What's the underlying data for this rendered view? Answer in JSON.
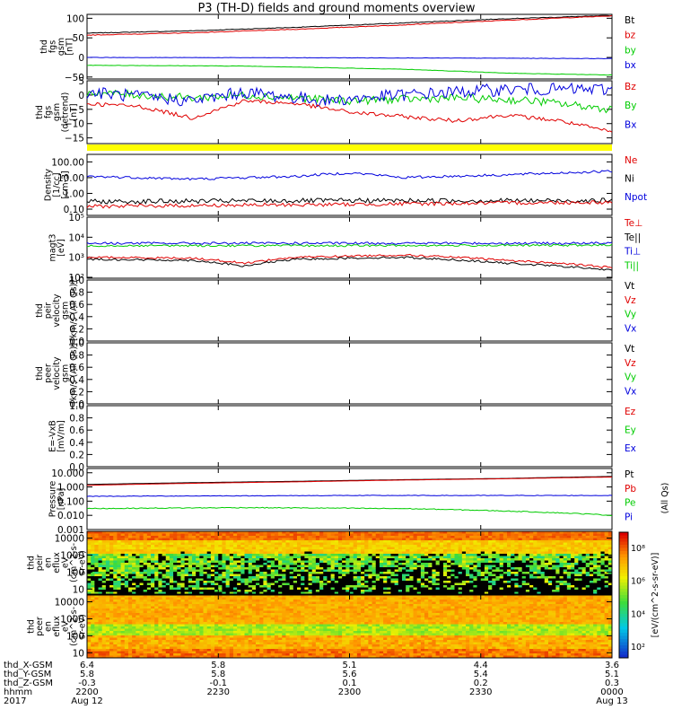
{
  "title": "P3 (TH-D) fields and ground moments overview",
  "colors": {
    "black": "#000000",
    "red": "#e00000",
    "green": "#00cc00",
    "blue": "#0000dd",
    "yellow": "#ffff00"
  },
  "chart_data": {
    "type": "line",
    "time_axis": {
      "ticks": [
        {
          "hhmm": "2200",
          "date": "Aug 12",
          "x_gsm": "6.4",
          "y_gsm": "5.8",
          "z_gsm": "-0.3"
        },
        {
          "hhmm": "2230",
          "date": "",
          "x_gsm": "5.8",
          "y_gsm": "5.8",
          "z_gsm": "-0.1"
        },
        {
          "hhmm": "2300",
          "date": "",
          "x_gsm": "5.1",
          "y_gsm": "5.6",
          "z_gsm": "0.1"
        },
        {
          "hhmm": "2330",
          "date": "",
          "x_gsm": "4.4",
          "y_gsm": "5.4",
          "z_gsm": "0.2"
        },
        {
          "hhmm": "0000",
          "date": "Aug 13",
          "x_gsm": "3.6",
          "y_gsm": "5.1",
          "z_gsm": "0.3"
        }
      ],
      "row_labels": [
        "thd_X-GSM",
        "thd_Y-GSM",
        "thd_Z-GSM",
        "hhmm",
        "2017"
      ]
    },
    "panels": [
      {
        "id": "fgs-gsm",
        "ylabel": [
          "thd",
          "fgs",
          "gsm",
          "[nT]"
        ],
        "yscale": "linear",
        "ylim": [
          -55,
          110
        ],
        "ticks": [
          {
            "v": 100,
            "t": "100"
          },
          {
            "v": 50,
            "t": "50"
          },
          {
            "v": 0,
            "t": "0"
          },
          {
            "v": -50,
            "t": "−50"
          }
        ],
        "legend": [
          {
            "text": "Bt",
            "color": "black"
          },
          {
            "text": "bz",
            "color": "red"
          },
          {
            "text": "by",
            "color": "green"
          },
          {
            "text": "bx",
            "color": "blue"
          }
        ],
        "series": [
          {
            "name": "Bt",
            "color": "black",
            "noise": 0.8,
            "pts": [
              [
                0,
                62
              ],
              [
                0.2,
                68
              ],
              [
                0.4,
                77
              ],
              [
                0.6,
                88
              ],
              [
                0.8,
                99
              ],
              [
                1,
                107
              ]
            ]
          },
          {
            "name": "bz",
            "color": "red",
            "noise": 0.8,
            "pts": [
              [
                0,
                57
              ],
              [
                0.2,
                63
              ],
              [
                0.4,
                72
              ],
              [
                0.6,
                83
              ],
              [
                0.8,
                95
              ],
              [
                1,
                106
              ]
            ]
          },
          {
            "name": "by",
            "color": "green",
            "noise": 0.5,
            "pts": [
              [
                0,
                -20
              ],
              [
                0.3,
                -22
              ],
              [
                0.6,
                -30
              ],
              [
                0.8,
                -40
              ],
              [
                1,
                -45
              ]
            ]
          },
          {
            "name": "bx",
            "color": "blue",
            "noise": 0.5,
            "pts": [
              [
                0,
                0
              ],
              [
                0.5,
                -1
              ],
              [
                0.8,
                -2
              ],
              [
                1,
                -3
              ]
            ]
          }
        ]
      },
      {
        "id": "fgs-gsm-dt",
        "ylabel": [
          "thd",
          "fgs",
          "gsm",
          "(detrend)",
          "[nT]"
        ],
        "yscale": "linear",
        "ylim": [
          -17,
          5
        ],
        "ticks": [
          {
            "v": 5,
            "t": "5"
          },
          {
            "v": 0,
            "t": "0"
          },
          {
            "v": -5,
            "t": "−5"
          },
          {
            "v": -10,
            "t": "−10"
          },
          {
            "v": -15,
            "t": "−15"
          }
        ],
        "legend": [
          {
            "text": "Bz",
            "color": "red"
          },
          {
            "text": "By",
            "color": "green"
          },
          {
            "text": "Bx",
            "color": "blue"
          }
        ],
        "series": [
          {
            "name": "By",
            "color": "green",
            "noise": 1.4,
            "pts": [
              [
                0,
                1
              ],
              [
                0.2,
                -1
              ],
              [
                0.3,
                0
              ],
              [
                0.5,
                -2
              ],
              [
                0.7,
                -1
              ],
              [
                0.85,
                -2
              ],
              [
                1,
                -5
              ]
            ]
          },
          {
            "name": "Bx",
            "color": "blue",
            "noise": 2.2,
            "pts": [
              [
                0,
                1
              ],
              [
                0.2,
                -2
              ],
              [
                0.3,
                1
              ],
              [
                0.45,
                -2
              ],
              [
                0.6,
                0
              ],
              [
                0.8,
                2
              ],
              [
                1,
                2
              ]
            ]
          },
          {
            "name": "Bz",
            "color": "red",
            "noise": 0.7,
            "pts": [
              [
                0,
                -3
              ],
              [
                0.1,
                -4
              ],
              [
                0.2,
                -8
              ],
              [
                0.3,
                -2
              ],
              [
                0.4,
                -3
              ],
              [
                0.5,
                -6
              ],
              [
                0.7,
                -9
              ],
              [
                0.8,
                -7
              ],
              [
                0.9,
                -9
              ],
              [
                1,
                -13
              ]
            ]
          }
        ]
      },
      {
        "id": "density",
        "ylabel": [
          "Density",
          "[1/cc]",
          "[cm-3]"
        ],
        "yscale": "log",
        "ylim": [
          0.04,
          300
        ],
        "ticks": [
          {
            "v": 100,
            "t": "100.00"
          },
          {
            "v": 10,
            "t": "10.00"
          },
          {
            "v": 1,
            "t": "1.00"
          },
          {
            "v": 0.1,
            "t": "0.10"
          }
        ],
        "legend": [
          {
            "text": "Ne",
            "color": "red"
          },
          {
            "text": "Ni",
            "color": "black"
          },
          {
            "text": "Npot",
            "color": "blue"
          }
        ],
        "series": [
          {
            "name": "Npot",
            "color": "blue",
            "noise": 0.08,
            "pts": [
              [
                0,
                12
              ],
              [
                0.2,
                8
              ],
              [
                0.4,
                12
              ],
              [
                0.5,
                20
              ],
              [
                0.6,
                10
              ],
              [
                0.8,
                15
              ],
              [
                1,
                25
              ]
            ]
          },
          {
            "name": "Ni",
            "color": "black",
            "noise": 0.15,
            "pts": [
              [
                0,
                0.3
              ],
              [
                0.5,
                0.35
              ],
              [
                1,
                0.35
              ]
            ]
          },
          {
            "name": "Ne",
            "color": "red",
            "noise": 0.12,
            "pts": [
              [
                0,
                0.15
              ],
              [
                0.5,
                0.2
              ],
              [
                1,
                0.28
              ]
            ]
          }
        ]
      },
      {
        "id": "temperature",
        "ylabel": [
          "magt3",
          "[eV]"
        ],
        "yscale": "log",
        "ylim": [
          90,
          100000
        ],
        "ticks": [
          {
            "v": 100000,
            "t": "10⁵"
          },
          {
            "v": 10000,
            "t": "10⁴"
          },
          {
            "v": 1000,
            "t": "10³"
          },
          {
            "v": 100,
            "t": "10²"
          }
        ],
        "legend": [
          {
            "text": "Te⊥",
            "color": "red"
          },
          {
            "text": "Te||",
            "color": "black"
          },
          {
            "text": "Ti⊥",
            "color": "blue"
          },
          {
            "text": "Ti||",
            "color": "green"
          }
        ],
        "series": [
          {
            "name": "Ti⊥",
            "color": "blue",
            "noise": 0.06,
            "pts": [
              [
                0,
                5000
              ],
              [
                0.5,
                5000
              ],
              [
                1,
                5000
              ]
            ]
          },
          {
            "name": "Ti||",
            "color": "green",
            "noise": 0.05,
            "pts": [
              [
                0,
                3800
              ],
              [
                0.5,
                3800
              ],
              [
                1,
                4000
              ]
            ]
          },
          {
            "name": "Te⊥",
            "color": "red",
            "noise": 0.05,
            "pts": [
              [
                0,
                1000
              ],
              [
                0.2,
                900
              ],
              [
                0.3,
                500
              ],
              [
                0.4,
                1000
              ],
              [
                0.6,
                1300
              ],
              [
                0.8,
                700
              ],
              [
                1,
                300
              ]
            ]
          },
          {
            "name": "Te||",
            "color": "black",
            "noise": 0.05,
            "pts": [
              [
                0,
                800
              ],
              [
                0.2,
                700
              ],
              [
                0.3,
                350
              ],
              [
                0.4,
                800
              ],
              [
                0.6,
                1000
              ],
              [
                0.8,
                500
              ],
              [
                1,
                220
              ]
            ]
          }
        ]
      },
      {
        "id": "peir-velocity",
        "ylabel": [
          "thd",
          "peir",
          "velocity",
          "gsm",
          "[km/s (All Qs)]"
        ],
        "yscale": "linear",
        "ylim": [
          0,
          1
        ],
        "ticks": [
          {
            "v": 1,
            "t": "1.0"
          },
          {
            "v": 0.8,
            "t": "0.8"
          },
          {
            "v": 0.6,
            "t": "0.6"
          },
          {
            "v": 0.4,
            "t": "0.4"
          },
          {
            "v": 0.2,
            "t": "0.2"
          },
          {
            "v": 0,
            "t": "0.0"
          }
        ],
        "legend": [
          {
            "text": "Vt",
            "color": "black"
          },
          {
            "text": "Vz",
            "color": "red"
          },
          {
            "text": "Vy",
            "color": "green"
          },
          {
            "text": "Vx",
            "color": "blue"
          }
        ],
        "series": []
      },
      {
        "id": "peer-velocity",
        "ylabel": [
          "thd",
          "peer",
          "velocity",
          "gsm",
          "[km/s (All Qs)]"
        ],
        "yscale": "linear",
        "ylim": [
          0,
          1
        ],
        "ticks": [
          {
            "v": 1,
            "t": "1.0"
          },
          {
            "v": 0.8,
            "t": "0.8"
          },
          {
            "v": 0.6,
            "t": "0.6"
          },
          {
            "v": 0.4,
            "t": "0.4"
          },
          {
            "v": 0.2,
            "t": "0.2"
          },
          {
            "v": 0,
            "t": "0.0"
          }
        ],
        "legend": [
          {
            "text": "Vt",
            "color": "black"
          },
          {
            "text": "Vz",
            "color": "red"
          },
          {
            "text": "Vy",
            "color": "green"
          },
          {
            "text": "Vx",
            "color": "blue"
          }
        ],
        "series": []
      },
      {
        "id": "efield",
        "ylabel": [
          "E=-VxB",
          "[mV/m]"
        ],
        "yscale": "linear",
        "ylim": [
          0,
          1
        ],
        "ticks": [
          {
            "v": 1,
            "t": "1.0"
          },
          {
            "v": 0.8,
            "t": "0.8"
          },
          {
            "v": 0.6,
            "t": "0.6"
          },
          {
            "v": 0.4,
            "t": "0.4"
          },
          {
            "v": 0.2,
            "t": "0.2"
          },
          {
            "v": 0,
            "t": "0.0"
          }
        ],
        "legend": [
          {
            "text": "Ez",
            "color": "red"
          },
          {
            "text": "Ey",
            "color": "green"
          },
          {
            "text": "Ex",
            "color": "blue"
          }
        ],
        "series": []
      },
      {
        "id": "pressure",
        "ylabel": [
          "Pressure",
          "[nPa]"
        ],
        "yscale": "log",
        "ylim": [
          0.001,
          20
        ],
        "ticks": [
          {
            "v": 10,
            "t": "10.000"
          },
          {
            "v": 1,
            "t": "1.000"
          },
          {
            "v": 0.1,
            "t": "0.100"
          },
          {
            "v": 0.01,
            "t": "0.010"
          },
          {
            "v": 0.001,
            "t": "0.001"
          }
        ],
        "legend": [
          {
            "text": "Pt",
            "color": "black"
          },
          {
            "text": "Pb",
            "color": "red"
          },
          {
            "text": "Pe",
            "color": "green"
          },
          {
            "text": "Pi",
            "color": "blue"
          }
        ],
        "series": [
          {
            "name": "Pt",
            "color": "black",
            "noise": 0,
            "pts": [
              [
                0,
                1.5
              ],
              [
                0.4,
                2.5
              ],
              [
                0.8,
                4
              ],
              [
                1,
                5.5
              ]
            ]
          },
          {
            "name": "Pb",
            "color": "red",
            "noise": 0,
            "pts": [
              [
                0,
                1.3
              ],
              [
                0.4,
                2.3
              ],
              [
                0.8,
                3.8
              ],
              [
                1,
                5
              ]
            ]
          },
          {
            "name": "Pi",
            "color": "blue",
            "noise": 0.02,
            "pts": [
              [
                0,
                0.22
              ],
              [
                0.5,
                0.25
              ],
              [
                1,
                0.25
              ]
            ]
          },
          {
            "name": "Pe",
            "color": "green",
            "noise": 0.03,
            "pts": [
              [
                0,
                0.03
              ],
              [
                0.3,
                0.035
              ],
              [
                0.6,
                0.03
              ],
              [
                0.8,
                0.02
              ],
              [
                1,
                0.01
              ]
            ]
          }
        ]
      },
      {
        "id": "peir-spectrogram",
        "type": "heatmap",
        "ylabel": [
          "thd",
          "peir",
          "en",
          "eflux",
          "eV",
          "(cm^2-s-",
          "sr-eV)"
        ],
        "yscale": "log",
        "ylim": [
          5,
          25000
        ],
        "ticks": [
          {
            "v": 10000,
            "t": "10000"
          },
          {
            "v": 1000,
            "t": "1000"
          },
          {
            "v": 100,
            "t": "100"
          },
          {
            "v": 10,
            "t": "10"
          }
        ]
      },
      {
        "id": "peer-spectrogram",
        "type": "heatmap",
        "ylabel": [
          "thd",
          "peer",
          "en",
          "eflux",
          "eV",
          "(cm^2-s-",
          "sr-eV)"
        ],
        "yscale": "log",
        "ylim": [
          5,
          25000
        ],
        "ticks": [
          {
            "v": 10000,
            "t": "10000"
          },
          {
            "v": 1000,
            "t": "1000"
          },
          {
            "v": 100,
            "t": "100"
          },
          {
            "v": 10,
            "t": "10"
          }
        ]
      }
    ],
    "colorbar": {
      "ticks": [
        "10⁸",
        "10⁶",
        "10⁴",
        "10²"
      ],
      "label": "[eV/(cm^2-s-sr-eV)]",
      "label2": "(All Qs)"
    }
  }
}
